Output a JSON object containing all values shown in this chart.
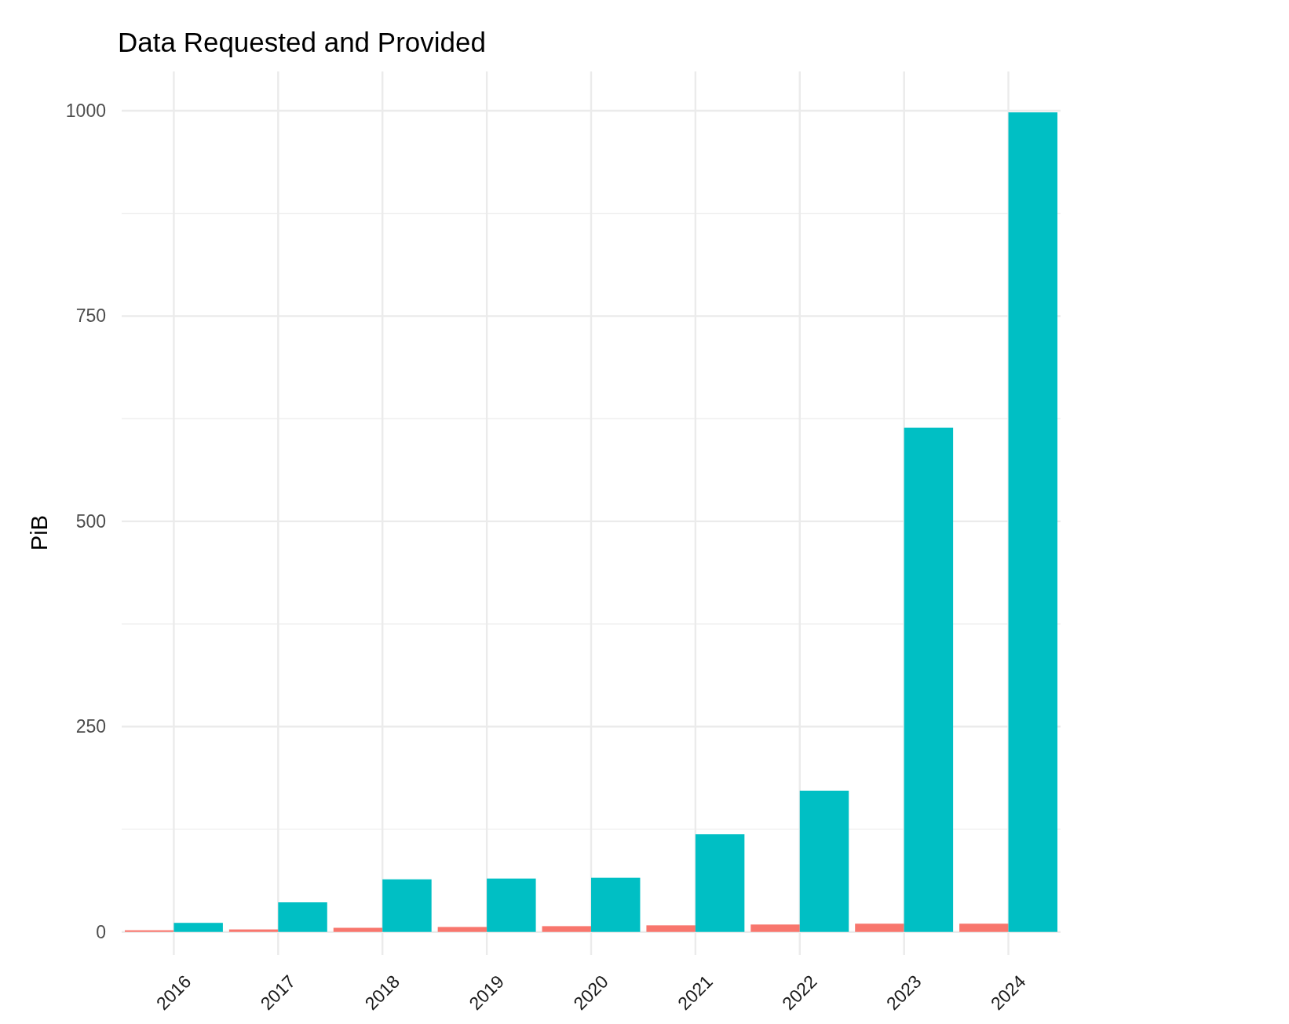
{
  "chart_data": {
    "type": "bar",
    "title": "Data Requested and Provided",
    "ylabel": "PiB",
    "categories": [
      "2016",
      "2017",
      "2018",
      "2019",
      "2020",
      "2021",
      "2022",
      "2023",
      "2024"
    ],
    "series": [
      {
        "color": "#f8766d",
        "values": [
          2,
          3,
          5,
          6,
          7,
          8,
          9,
          10,
          10
        ]
      },
      {
        "color": "#00bfc4",
        "values": [
          11,
          36,
          64,
          65,
          66,
          119,
          172,
          614,
          998
        ]
      }
    ],
    "ylim": [
      -28,
      1000
    ],
    "yticks": [
      0,
      {
        "value": 125,
        "label": null
      },
      250,
      {
        "value": 375,
        "label": null
      },
      500,
      {
        "value": 625,
        "label": null
      },
      750,
      {
        "value": 875,
        "label": null
      },
      1000
    ],
    "grid": true
  }
}
